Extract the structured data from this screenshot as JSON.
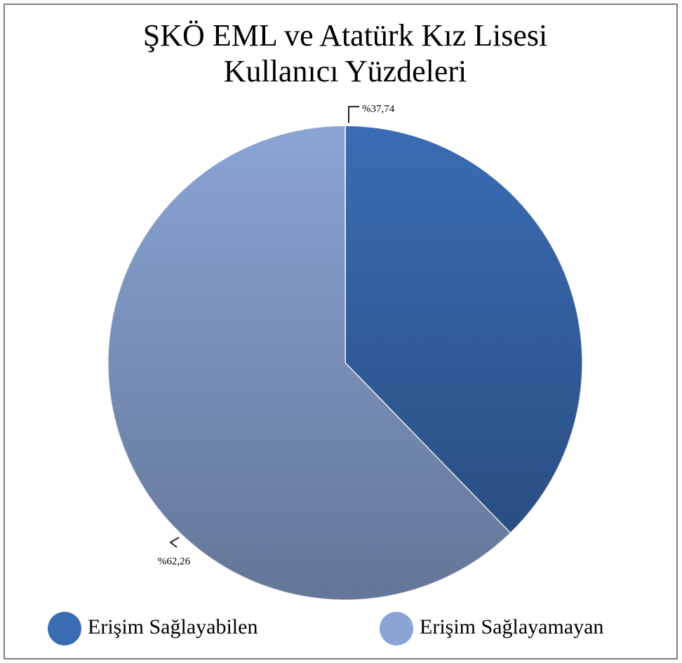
{
  "chart_data": {
    "type": "pie",
    "title": [
      "ŞKÖ EML ve Atatürk Kız Lisesi",
      "Kullanıcı Yüzdeleri"
    ],
    "categories": [
      "Erişim Sağlayabilen",
      "Erişim Sağlayamayan"
    ],
    "values": [
      37.74,
      62.26
    ],
    "value_labels": [
      "%37,74",
      "%62,26"
    ],
    "colors": [
      "#3a6cb4",
      "#8aa4d4"
    ],
    "legend": "bottom"
  }
}
